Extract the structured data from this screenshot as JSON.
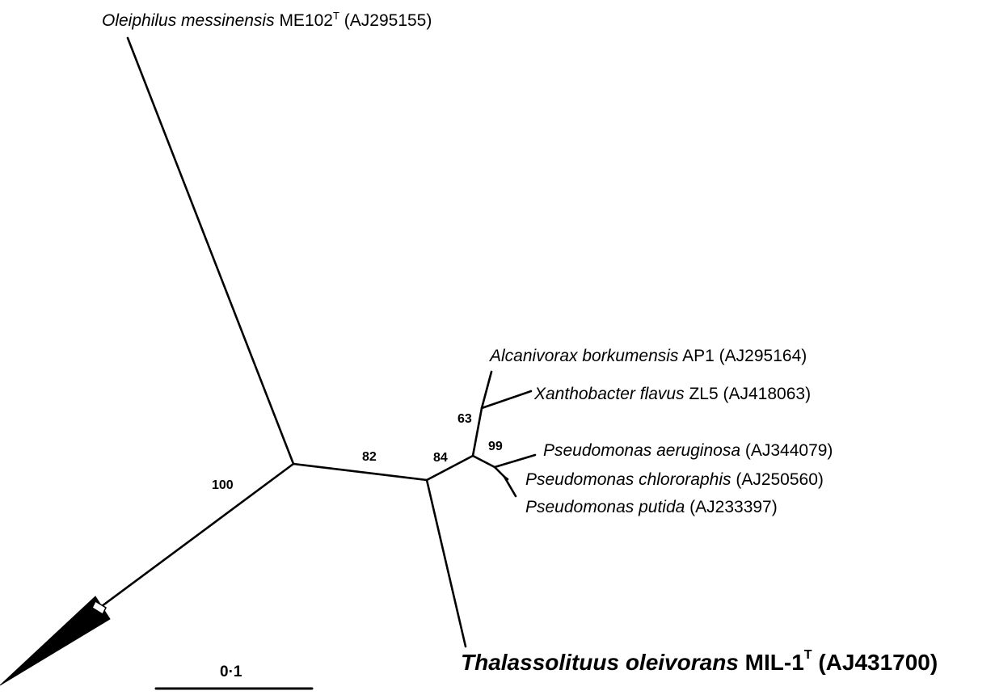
{
  "taxa": {
    "oleiphilus": {
      "genus_species": "Oleiphilus messinensis",
      "strain": "ME102",
      "type_mark": "T",
      "accession": "(AJ295155)"
    },
    "alcanivorax": {
      "genus_species": "Alcanivorax borkumensis",
      "strain": "AP1",
      "accession": "(AJ295164)"
    },
    "xanthobacter": {
      "genus_species": "Xanthobacter flavus",
      "strain": "ZL5",
      "accession": "(AJ418063)"
    },
    "p_aeruginosa": {
      "genus_species": "Pseudomonas aeruginosa",
      "accession": "(AJ344079)"
    },
    "p_chlororaphis": {
      "genus_species": "Pseudomonas chlororaphis",
      "accession": "(AJ250560)"
    },
    "p_putida": {
      "genus_species": "Pseudomonas putida",
      "accession": "(AJ233397)"
    },
    "thalassolituus": {
      "genus_species": "Thalassolituus oleivorans",
      "strain": "MIL-1",
      "type_mark": "T",
      "accession": "(AJ431700)"
    }
  },
  "bootstrap": {
    "b100": "100",
    "b82": "82",
    "b84": "84",
    "b63": "63",
    "b99": "99"
  },
  "scale_bar": {
    "label": "0·1"
  }
}
